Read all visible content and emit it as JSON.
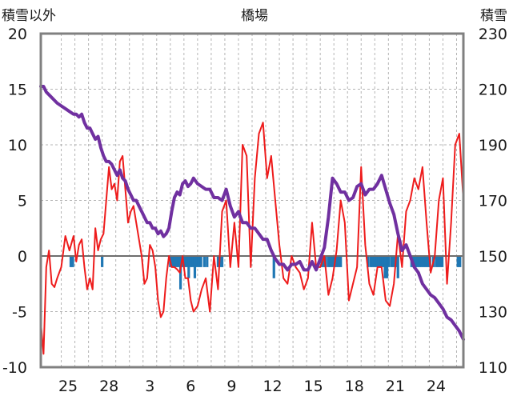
{
  "chart_data": {
    "type": "line",
    "title": "橋場",
    "left_axis_label": "積雪以外",
    "right_axis_label": "積雪",
    "left_axis": {
      "min": -10,
      "max": 20,
      "ticks": [
        "20",
        "15",
        "10",
        "5",
        "0",
        "-5",
        "-10"
      ]
    },
    "right_axis": {
      "min": 110,
      "max": 230,
      "ticks": [
        "230",
        "210",
        "190",
        "170",
        "150",
        "130",
        "110"
      ]
    },
    "x_tick_labels": [
      "25",
      "28",
      "3",
      "6",
      "9",
      "12",
      "15",
      "18",
      "21",
      "24"
    ],
    "x_range": {
      "start": 0,
      "end": 31
    },
    "grid": {
      "vertical": "dashed",
      "horizontal": "dashed"
    },
    "colors": {
      "temperature": "#ee1c1c",
      "snow_depth": "#7030a0",
      "precipitation": "#1f77b4",
      "frame": "#808080"
    },
    "series": [
      {
        "key": "temperature",
        "axis": "left",
        "x": [
          0,
          0.2,
          0.4,
          0.6,
          0.8,
          1.0,
          1.2,
          1.5,
          1.8,
          2.1,
          2.4,
          2.6,
          2.8,
          3.0,
          3.2,
          3.4,
          3.6,
          3.8,
          4.0,
          4.2,
          4.4,
          4.6,
          4.8,
          5.0,
          5.2,
          5.4,
          5.6,
          5.8,
          6.0,
          6.2,
          6.4,
          6.6,
          6.8,
          7.0,
          7.2,
          7.4,
          7.6,
          7.8,
          8.0,
          8.2,
          8.4,
          8.6,
          8.8,
          9.0,
          9.2,
          9.4,
          9.6,
          9.8,
          10.0,
          10.2,
          10.4,
          10.6,
          10.8,
          11.0,
          11.2,
          11.5,
          11.8,
          12.1,
          12.4,
          12.7,
          13.0,
          13.3,
          13.6,
          13.9,
          14.2,
          14.5,
          14.8,
          15.1,
          15.4,
          15.7,
          16.0,
          16.3,
          16.6,
          16.9,
          17.2,
          17.5,
          17.8,
          18.1,
          18.4,
          18.7,
          19.0,
          19.3,
          19.6,
          19.9,
          20.2,
          20.5,
          20.8,
          21.1,
          21.4,
          21.7,
          22.0,
          22.3,
          22.6,
          22.9,
          23.2,
          23.5,
          23.8,
          24.1,
          24.4,
          24.7,
          25.0,
          25.3,
          25.6,
          25.9,
          26.2,
          26.5,
          26.8,
          27.1,
          27.4,
          27.7,
          28.0,
          28.3,
          28.6,
          28.9,
          29.2,
          29.5,
          29.8,
          30.1,
          30.4,
          30.7,
          31.0
        ],
        "values": [
          -6,
          -8.8,
          -1,
          0.5,
          -2.5,
          -2.8,
          -2,
          -1,
          1.8,
          0.5,
          1.8,
          -0.5,
          1,
          1.5,
          -1,
          -3,
          -2,
          -3,
          2.5,
          0.5,
          1.5,
          2,
          5,
          8,
          6,
          6.5,
          5,
          8.5,
          9,
          6,
          3,
          4,
          4.5,
          3,
          1.5,
          0,
          -2.5,
          -2,
          1,
          0.5,
          -1,
          -4,
          -5.5,
          -5,
          -2,
          0,
          -1,
          -1,
          -1.2,
          -1.5,
          0,
          -2,
          -2,
          -4,
          -5,
          -4.5,
          -3,
          -2,
          -5,
          0,
          -3,
          4,
          5,
          -1,
          3,
          -1,
          10,
          9,
          -1,
          7,
          11,
          12,
          7,
          9,
          5,
          1,
          -2,
          -2.5,
          0,
          -1,
          -1.5,
          -3,
          -2,
          3,
          -1,
          -1,
          0,
          -3.5,
          -2,
          0.5,
          5,
          3,
          -4,
          -2.5,
          -1,
          8,
          1,
          -2.5,
          -3.5,
          -1,
          -1,
          -4,
          -4.5,
          -2.5,
          2,
          -1,
          4,
          5,
          7,
          6,
          8,
          3,
          -1.5,
          0,
          5,
          7,
          -2.5,
          3,
          10,
          11,
          5
        ]
      },
      {
        "key": "snow_depth",
        "axis": "right",
        "x": [
          0,
          0.2,
          0.4,
          0.6,
          0.8,
          1.0,
          1.2,
          1.5,
          1.8,
          2.1,
          2.4,
          2.6,
          2.8,
          3.0,
          3.2,
          3.4,
          3.6,
          3.8,
          4.0,
          4.2,
          4.4,
          4.6,
          4.8,
          5.0,
          5.2,
          5.4,
          5.6,
          5.8,
          6.0,
          6.2,
          6.4,
          6.6,
          6.8,
          7.0,
          7.2,
          7.4,
          7.6,
          7.8,
          8.0,
          8.2,
          8.4,
          8.6,
          8.8,
          9.0,
          9.2,
          9.4,
          9.6,
          9.8,
          10.0,
          10.2,
          10.4,
          10.6,
          10.8,
          11.0,
          11.2,
          11.5,
          11.8,
          12.1,
          12.4,
          12.7,
          13.0,
          13.3,
          13.6,
          13.9,
          14.2,
          14.5,
          14.8,
          15.1,
          15.4,
          15.7,
          16.0,
          16.3,
          16.6,
          16.9,
          17.2,
          17.5,
          17.8,
          18.1,
          18.4,
          18.7,
          19.0,
          19.3,
          19.6,
          19.9,
          20.2,
          20.5,
          20.8,
          21.1,
          21.4,
          21.7,
          22.0,
          22.3,
          22.6,
          22.9,
          23.2,
          23.5,
          23.8,
          24.1,
          24.4,
          24.7,
          25.0,
          25.3,
          25.6,
          25.9,
          26.2,
          26.5,
          26.8,
          27.1,
          27.4,
          27.7,
          28.0,
          28.3,
          28.6,
          28.9,
          29.2,
          29.5,
          29.8,
          30.1,
          30.4,
          30.7,
          31.0
        ],
        "values": [
          211,
          211,
          209,
          208,
          207,
          206,
          205,
          204,
          203,
          202,
          201,
          201,
          200,
          201,
          198,
          196,
          196,
          194,
          192,
          193,
          189,
          186,
          184,
          184,
          183,
          181,
          179,
          181,
          178,
          177,
          174,
          172,
          170,
          170,
          168,
          166,
          164,
          162,
          162,
          160,
          160,
          158,
          159,
          157,
          158,
          160,
          166,
          171,
          173,
          172,
          176,
          177,
          175,
          176,
          178,
          176,
          175,
          174,
          174,
          171,
          171,
          170,
          174,
          168,
          164,
          166,
          162,
          162,
          160,
          160,
          158,
          156,
          156,
          152,
          149,
          147,
          147,
          145,
          147,
          147,
          148,
          145,
          145,
          148,
          145,
          149,
          153,
          164,
          178,
          176,
          173,
          173,
          170,
          171,
          175,
          176,
          172,
          174,
          174,
          176,
          179,
          174,
          169,
          165,
          158,
          152,
          154,
          150,
          146,
          144,
          140,
          138,
          136,
          135,
          133,
          131,
          128,
          127,
          125,
          123,
          120
        ]
      },
      {
        "key": "precipitation",
        "axis": "left",
        "type": "bar",
        "x": [
          2.2,
          2.35,
          4.5,
          9.5,
          9.65,
          9.8,
          9.95,
          10.1,
          10.25,
          10.4,
          10.55,
          10.7,
          10.85,
          11.0,
          11.15,
          11.3,
          11.45,
          11.6,
          11.75,
          12.0,
          12.2,
          13.0,
          13.15,
          13.3,
          17.1,
          20.6,
          20.75,
          20.9,
          21.1,
          21.25,
          21.4,
          21.55,
          21.7,
          21.85,
          22.0,
          24.0,
          24.2,
          24.35,
          24.5,
          24.65,
          24.8,
          24.95,
          25.1,
          25.25,
          25.4,
          25.55,
          25.75,
          25.9,
          26.05,
          26.2,
          27.2,
          27.35,
          27.5,
          27.65,
          27.8,
          27.95,
          28.1,
          28.25,
          28.4,
          28.55,
          28.8,
          29.0,
          29.15,
          29.3,
          29.45,
          30.6,
          30.75
        ],
        "values": [
          -1,
          -1,
          -1,
          -1,
          -1,
          -1,
          -1,
          -1,
          -3,
          -1,
          -1,
          -1,
          -2,
          -1,
          -1,
          -2,
          -1,
          -1,
          -1,
          -1,
          -1,
          -1,
          -1,
          -1,
          -2,
          -1,
          -1,
          -1,
          -1,
          -1,
          -1,
          -1,
          -1,
          -1,
          -1,
          -1,
          -1,
          -1,
          -1,
          -1,
          -1,
          -1,
          -1,
          -2,
          -2,
          -1,
          -1,
          -1,
          -1,
          -2,
          -1,
          -1,
          -1,
          -1,
          -1,
          -1,
          -1,
          -1,
          -1,
          -1,
          -1,
          -1,
          -1,
          -1,
          -1,
          -1,
          -1
        ]
      }
    ]
  }
}
